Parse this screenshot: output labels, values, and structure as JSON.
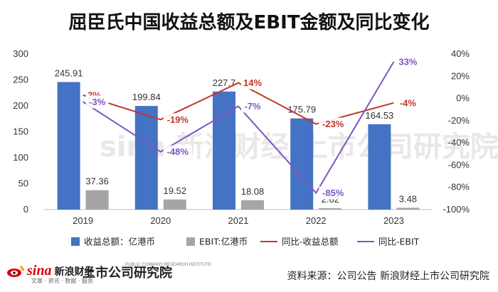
{
  "chart_data": {
    "type": "bar",
    "title": "屈臣氏中国收益总额及EBIT金额及同比变化",
    "categories": [
      "2019",
      "2020",
      "2021",
      "2022",
      "2023"
    ],
    "series": [
      {
        "name": "收益总额：亿港币",
        "type": "bar",
        "values": [
          245.91,
          199.84,
          227.7,
          175.79,
          164.53
        ],
        "labels": [
          "245.91",
          "199.84",
          "227.7",
          "175.79",
          "164.53"
        ],
        "color": "#4472c4"
      },
      {
        "name": "EBIT:亿港币",
        "type": "bar",
        "values": [
          37.36,
          19.52,
          18.08,
          2.62,
          3.48
        ],
        "labels": [
          "37.36",
          "19.52",
          "18.08",
          "2.62",
          "3.48"
        ],
        "color": "#a5a5a5"
      },
      {
        "name": "同比-收益总额",
        "type": "line",
        "axis": "right",
        "values": [
          3,
          -19,
          14,
          -23,
          -4
        ],
        "labels": [
          "3%",
          "-19%",
          "14%",
          "-23%",
          "-4%"
        ],
        "color": "#c0392b"
      },
      {
        "name": "同比-EBIT",
        "type": "line",
        "axis": "right",
        "values": [
          -3,
          -48,
          -7,
          -85,
          33
        ],
        "labels": [
          "-3%",
          "-48%",
          "-7%",
          "-85%",
          "33%"
        ],
        "color": "#7e57c2"
      }
    ],
    "y_left": {
      "min": 0,
      "max": 300,
      "ticks": [
        "0",
        "50",
        "100",
        "150",
        "200",
        "250",
        "300"
      ]
    },
    "y_right": {
      "min": -100,
      "max": 40,
      "ticks": [
        "-100%",
        "-80%",
        "-60%",
        "-40%",
        "-20%",
        "0%",
        "20%",
        "40%"
      ]
    },
    "grid": false,
    "legend_position": "bottom"
  },
  "footer": {
    "sina_logo_text": "sina",
    "sina_cn": "新浪财经",
    "sina_sub": "文章 · 资讯 · 数据 · 服务",
    "shang_cn": "上市公司研究院",
    "shang_en": "PUBLIC COMPANY RESEARCH INSTITUTE",
    "source": "资料来源：公司公告 新浪财经上市公司研究院"
  },
  "watermark": {
    "text": "sina 新浪财经  上市公司研究院"
  }
}
